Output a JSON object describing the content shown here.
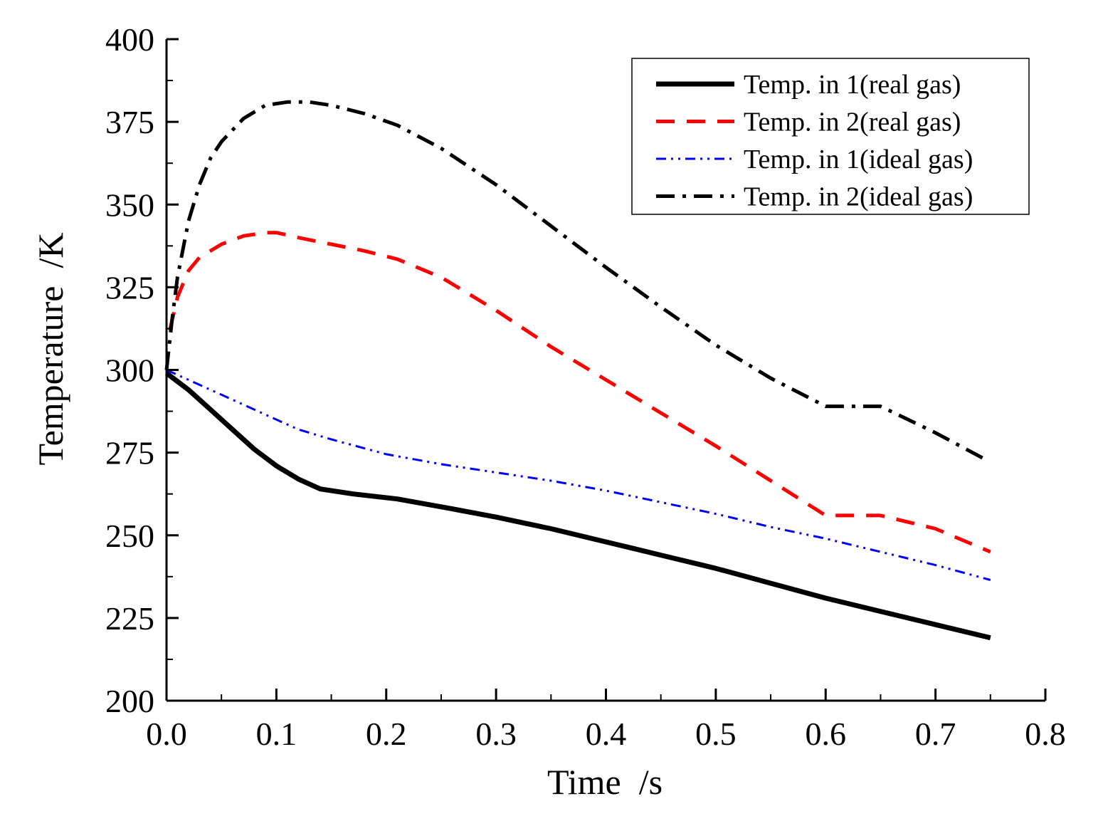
{
  "chart_data": {
    "type": "line",
    "title": "",
    "xlabel": "Time  /s",
    "ylabel": "Temperature  /K",
    "xlim": [
      0.0,
      0.8
    ],
    "ylim": [
      200,
      400
    ],
    "xticks": [
      0.0,
      0.1,
      0.2,
      0.3,
      0.4,
      0.5,
      0.6,
      0.7,
      0.8
    ],
    "xtick_labels": [
      "0.0",
      "0.1",
      "0.2",
      "0.3",
      "0.4",
      "0.5",
      "0.6",
      "0.7",
      "0.8"
    ],
    "yticks": [
      200,
      225,
      250,
      275,
      300,
      325,
      350,
      375,
      400
    ],
    "ytick_labels": [
      "200",
      "225",
      "250",
      "275",
      "300",
      "325",
      "350",
      "375",
      "400"
    ],
    "grid": false,
    "legend_position": "top-right",
    "series": [
      {
        "name": "Temp. in 1(real gas)",
        "color": "#000000",
        "style": "solid",
        "x": [
          0.0,
          0.02,
          0.04,
          0.06,
          0.08,
          0.1,
          0.12,
          0.14,
          0.17,
          0.21,
          0.26,
          0.3,
          0.35,
          0.4,
          0.45,
          0.5,
          0.55,
          0.6,
          0.65,
          0.7,
          0.75
        ],
        "y": [
          299,
          294,
          288,
          282,
          276,
          271,
          267,
          264,
          262.5,
          261,
          258,
          255.5,
          252,
          248,
          244,
          240,
          235.5,
          231,
          227,
          223,
          219
        ]
      },
      {
        "name": "Temp. in 2(real gas)",
        "color": "#ff0000",
        "style": "dashed",
        "x": [
          0.003,
          0.01,
          0.02,
          0.03,
          0.05,
          0.07,
          0.09,
          0.1,
          0.12,
          0.15,
          0.18,
          0.21,
          0.25,
          0.3,
          0.35,
          0.4,
          0.45,
          0.5,
          0.55,
          0.6,
          0.65,
          0.7,
          0.75
        ],
        "y": [
          312,
          322,
          330,
          334,
          338,
          340.5,
          341.5,
          341.5,
          340,
          338,
          336,
          333.5,
          328,
          318,
          307,
          297,
          287,
          277,
          266.5,
          256,
          256,
          252,
          245
        ]
      },
      {
        "name": "Temp. in 1(ideal gas)",
        "color": "#0000ff",
        "style": "dash-dot-dot",
        "x": [
          0.0,
          0.02,
          0.05,
          0.08,
          0.1,
          0.12,
          0.15,
          0.2,
          0.25,
          0.3,
          0.35,
          0.4,
          0.45,
          0.5,
          0.55,
          0.6,
          0.65,
          0.7,
          0.75
        ],
        "y": [
          300,
          297,
          292.5,
          288,
          285,
          282,
          279,
          274.5,
          271.5,
          269,
          266.5,
          263.5,
          260,
          256.5,
          252.5,
          249,
          245,
          241,
          236.5
        ]
      },
      {
        "name": "Temp. in 2(ideal gas)",
        "color": "#000000",
        "style": "dash-dot",
        "x": [
          0.0,
          0.005,
          0.01,
          0.02,
          0.03,
          0.04,
          0.05,
          0.07,
          0.09,
          0.11,
          0.13,
          0.15,
          0.18,
          0.21,
          0.25,
          0.3,
          0.35,
          0.4,
          0.45,
          0.5,
          0.55,
          0.6,
          0.65,
          0.7,
          0.745
        ],
        "y": [
          300,
          315,
          328,
          345,
          356,
          364,
          369,
          376,
          380,
          381,
          381,
          380,
          377.5,
          374,
          367,
          356,
          343.5,
          331,
          319,
          307.5,
          297.5,
          289,
          289,
          281,
          273
        ]
      }
    ]
  }
}
